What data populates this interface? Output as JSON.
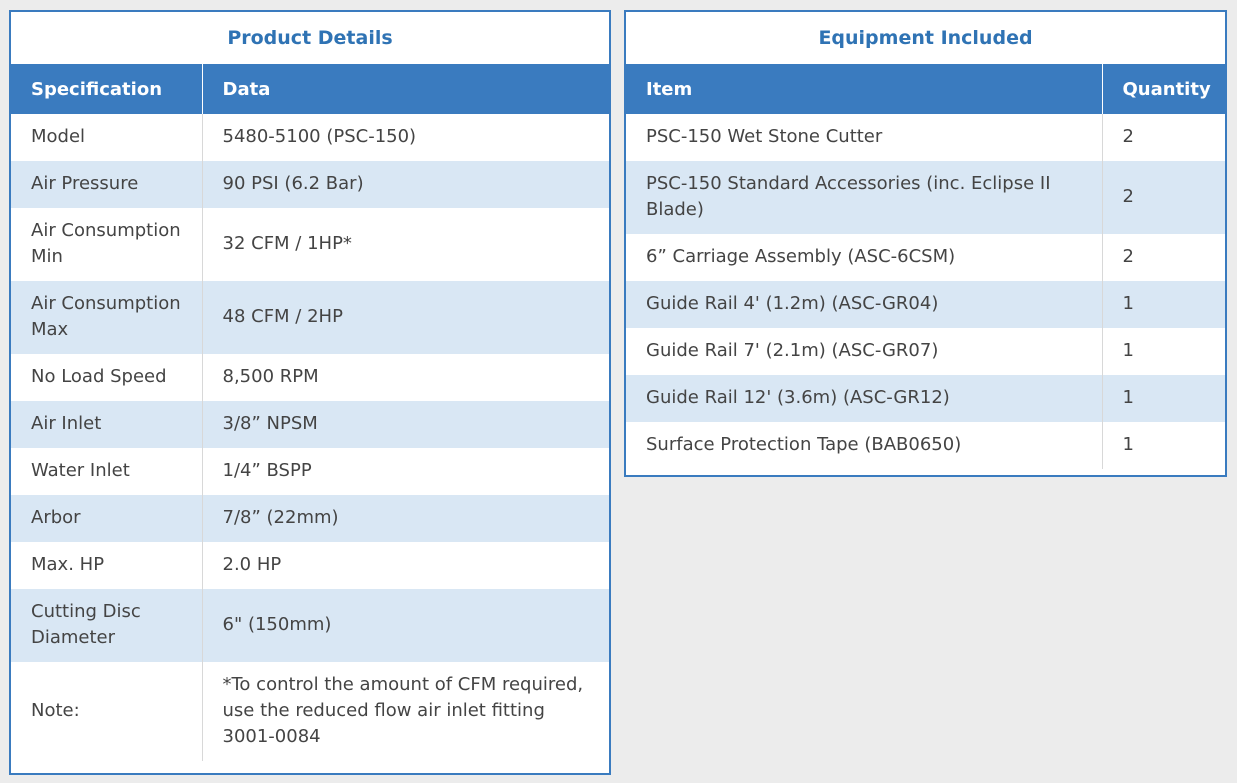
{
  "product_details": {
    "title": "Product Details",
    "headers": [
      "Specification",
      "Data"
    ],
    "rows": [
      [
        "Model",
        "5480-5100 (PSC-150)"
      ],
      [
        "Air Pressure",
        "90 PSI (6.2 Bar)"
      ],
      [
        "Air Consumption Min",
        "32 CFM / 1HP*"
      ],
      [
        "Air Consumption Max",
        "48 CFM / 2HP"
      ],
      [
        "No Load Speed",
        "8,500 RPM"
      ],
      [
        "Air Inlet",
        "3/8” NPSM"
      ],
      [
        "Water Inlet",
        "1/4” BSPP"
      ],
      [
        "Arbor",
        "7/8” (22mm)"
      ],
      [
        "Max. HP",
        "2.0 HP"
      ],
      [
        "Cutting Disc Diameter",
        "6\" (150mm)"
      ],
      [
        "Note:",
        "*To control the amount of CFM required, use the reduced flow air inlet fitting 3001-0084"
      ]
    ]
  },
  "equipment_included": {
    "title": "Equipment Included",
    "headers": [
      "Item",
      "Quantity"
    ],
    "rows": [
      [
        "PSC-150 Wet Stone Cutter",
        "2"
      ],
      [
        "PSC-150 Standard Accessories (inc. Eclipse II Blade)",
        "2"
      ],
      [
        "6” Carriage Assembly (ASC-6CSM)",
        "2"
      ],
      [
        "Guide Rail 4' (1.2m) (ASC-GR04)",
        "1"
      ],
      [
        "Guide Rail 7' (2.1m) (ASC-GR07)",
        "1"
      ],
      [
        "Guide Rail 12' (3.6m) (ASC-GR12)",
        "1"
      ],
      [
        "Surface Protection Tape (BAB0650)",
        "1"
      ]
    ]
  }
}
